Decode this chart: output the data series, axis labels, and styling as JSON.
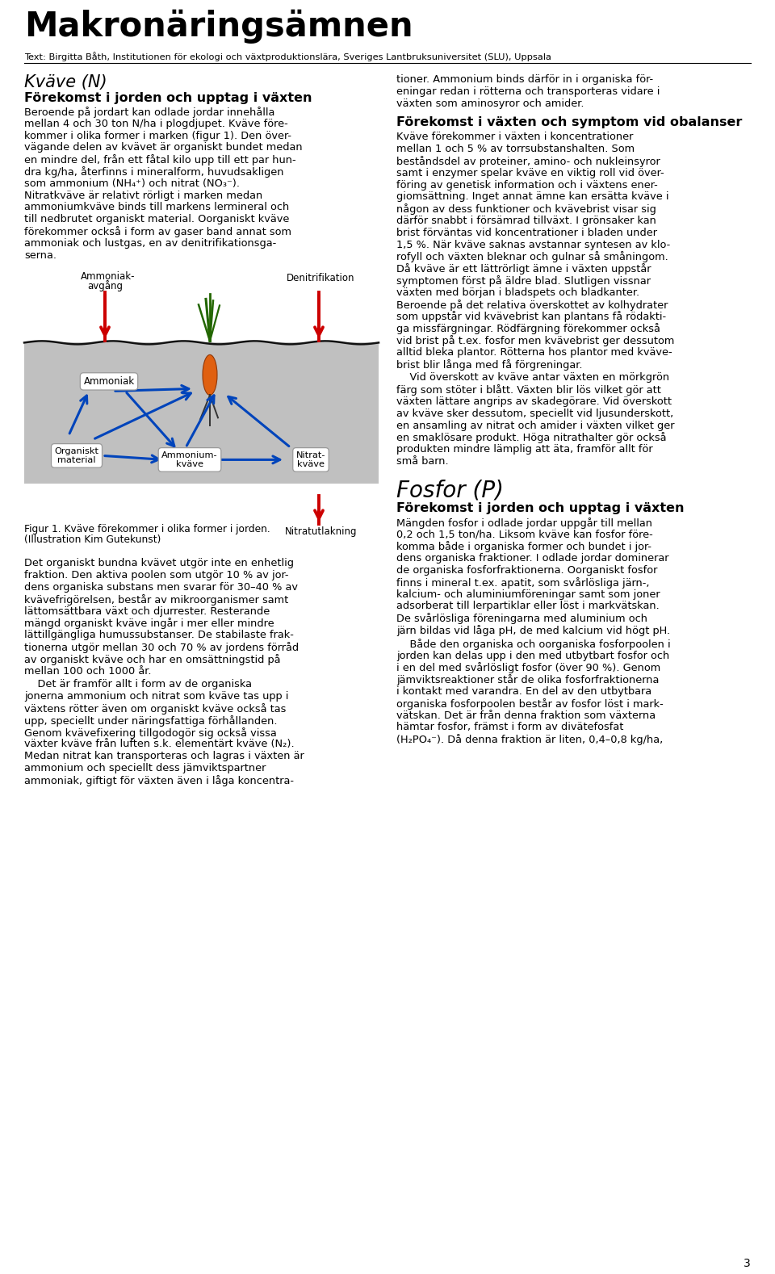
{
  "title": "Makronäringsämnen",
  "subtitle": "Text: Birgitta Båth, Institutionen för ekologi och växtproduktionslära, Sveriges Lantbruksuniversitet (SLU), Uppsala",
  "section1_heading": "Kväve (N)",
  "section1_subheading": "Förekomst i jorden och upptag i växten",
  "section2_heading": "Förekomst i växten och symptom vid obalanser",
  "section3_heading": "Fosfor (P)",
  "section3_subheading": "Förekomst i jorden och upptag i växten",
  "fig_caption1": "Figur 1. Kväve förekommer i olika former i jorden.",
  "fig_caption2": "(Illustration Kim Gutekunst)",
  "page_number": "3",
  "background_color": "#ffffff",
  "text_color": "#000000",
  "left_para1_lines": [
    "Beroende på jordart kan odlade jordar innehålla",
    "mellan 4 och 30 ton N/ha i plogdjupet. Kväve före-",
    "kommer i olika former i marken (figur 1). Den över-",
    "vägande delen av kvävet är organiskt bundet medan",
    "en mindre del, från ett fåtal kilo upp till ett par hun-",
    "dra kg/ha, återfinns i mineralform, huvudsakligen",
    "som ammonium (NH₄⁺) och nitrat (NO₃⁻).",
    "Nitratkväve är relativt rörligt i marken medan",
    "ammoniumkväve binds till markens lermineral och",
    "till nedbrutet organiskt material. Oorganiskt kväve",
    "förekommer också i form av gaser band annat som",
    "ammoniak och lustgas, en av denitrifikationsga-",
    "serna."
  ],
  "left_para2_lines": [
    "Det organiskt bundna kvävet utgör inte en enhetlig",
    "fraktion. Den aktiva poolen som utgör 10 % av jor-",
    "dens organiska substans men svarar för 30–40 % av",
    "kvävefrigörelsen, består av mikroorganismer samt",
    "lättomsättbara växt och djurrester. Resterande",
    "mängd organiskt kväve ingår i mer eller mindre",
    "lättillgängliga humussubstanser. De stabilaste frak-",
    "tionerna utgör mellan 30 och 70 % av jordens förråd",
    "av organiskt kväve och har en omsättningstid på",
    "mellan 100 och 1000 år."
  ],
  "left_para3_lines": [
    "    Det är framför allt i form av de organiska",
    "jonerna ammonium och nitrat som kväve tas upp i",
    "växtens rötter även om organiskt kväve också tas",
    "upp, speciellt under näringsfattiga förhållanden.",
    "Genom kvävefixering tillgodogör sig också vissa",
    "växter kväve från luften s.k. elementärt kväve (N₂).",
    "Medan nitrat kan transporteras och lagras i växten är",
    "ammonium och speciellt dess jämviktspartner",
    "ammoniak, giftigt för växten även i låga koncentra-"
  ],
  "right_para1_lines": [
    "tioner. Ammonium binds därför in i organiska för-",
    "eningar redan i rötterna och transporteras vidare i",
    "växten som aminosyror och amider."
  ],
  "right_para2_lines": [
    "Kväve förekommer i växten i koncentrationer",
    "mellan 1 och 5 % av torrsubstanshalten. Som",
    "beståndsdel av proteiner, amino- och nukleinsyror",
    "samt i enzymer spelar kväve en viktig roll vid över-",
    "föring av genetisk information och i växtens ener-",
    "giomsättning. Inget annat ämne kan ersätta kväve i",
    "någon av dess funktioner och kvävebrist visar sig",
    "därför snabbt i försämrad tillväxt. I grönsaker kan",
    "brist förväntas vid koncentrationer i bladen under",
    "1,5 %. När kväve saknas avstannar syntesen av klo-",
    "rofyll och växten bleknar och gulnar så småningom.",
    "Då kväve är ett lättrörligt ämne i växten uppstår",
    "symptomen först på äldre blad. Slutligen vissnar",
    "växten med början i bladspets och bladkanter.",
    "Beroende på det relativa överskottet av kolhydrater",
    "som uppstår vid kvävebrist kan plantans få rödakti-",
    "ga missfärgningar. Rödfärgning förekommer också",
    "vid brist på t.ex. fosfor men kvävebrist ger dessutom",
    "alltid bleka plantor. Rötterna hos plantor med kväve-",
    "brist blir långa med få förgreningar."
  ],
  "right_para3_lines": [
    "    Vid överskott av kväve antar växten en mörkgrön",
    "färg som stöter i blått. Växten blir lös vilket gör att",
    "växten lättare angrips av skadegörare. Vid överskott",
    "av kväve sker dessutom, speciellt vid ljusunderskott,",
    "en ansamling av nitrat och amider i växten vilket ger",
    "en smaklösare produkt. Höga nitrathalter gör också",
    "produkten mindre lämplig att äta, framför allt för",
    "små barn."
  ],
  "right_para4_lines": [
    "Mängden fosfor i odlade jordar uppgår till mellan",
    "0,2 och 1,5 ton/ha. Liksom kväve kan fosfor före-",
    "komma både i organiska former och bundet i jor-",
    "dens organiska fraktioner. I odlade jordar dominerar",
    "de organiska fosforfraktionerna. Oorganiskt fosfor",
    "finns i mineral t.ex. apatit, som svårlösliga järn-,",
    "kalcium- och aluminiumföreningar samt som joner",
    "adsorberat till lerpartiklar eller löst i markvätskan.",
    "De svårlösliga föreningarna med aluminium och",
    "järn bildas vid låga pH, de med kalcium vid högt pH."
  ],
  "right_para5_lines": [
    "    Både den organiska och oorganiska fosforpoolen i",
    "jorden kan delas upp i den med utbytbart fosfor och",
    "i en del med svårlösligt fosfor (över 90 %). Genom",
    "jämviktsreaktioner står de olika fosforfraktionerna",
    "i kontakt med varandra. En del av den utbytbara",
    "organiska fosforpoolen består av fosfor löst i mark-",
    "vätskan. Det är från denna fraktion som växterna",
    "hämtar fosfor, främst i form av divätefosfat",
    "(H₂PO₄⁻). Då denna fraktion är liten, 0,4–0,8 kg/ha,"
  ]
}
